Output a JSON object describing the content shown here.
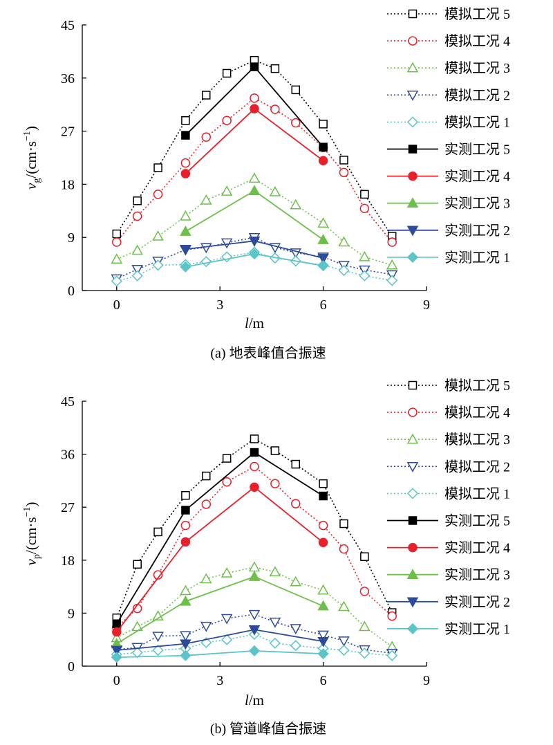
{
  "chart_data": [
    {
      "type": "line",
      "caption": "(a) 地表峰值合振速",
      "xlabel_italic": "l",
      "xlabel_unit": "/m",
      "ylabel_main": "v",
      "ylabel_sub": "g",
      "ylabel_unit": "/(cm·s",
      "ylabel_exp": "−1",
      "ylabel_close": ")",
      "xlim": [
        -1,
        9
      ],
      "ylim": [
        0,
        45
      ],
      "xticks": [
        "0",
        "3",
        "6",
        "9"
      ],
      "yticks": [
        "0",
        "9",
        "18",
        "27",
        "36",
        "45"
      ],
      "legend_position": "right",
      "series": [
        {
          "name": "模拟工况 5",
          "color": "#000000",
          "marker": "square",
          "filled": false,
          "dotted": true,
          "x": [
            0,
            0.6,
            1.2,
            2,
            2.6,
            3.2,
            4,
            4.6,
            5.2,
            6,
            6.6,
            7.2,
            8
          ],
          "y": [
            9.6,
            15.2,
            20.8,
            28.8,
            33.1,
            36.8,
            39.0,
            37.6,
            34.0,
            28.2,
            22.1,
            16.3,
            9.2
          ]
        },
        {
          "name": "模拟工况 4",
          "color": "#e8202a",
          "marker": "circle",
          "filled": false,
          "dotted": true,
          "x": [
            0,
            0.6,
            1.2,
            2,
            2.6,
            3.2,
            4,
            4.6,
            5.2,
            6,
            6.6,
            7.2,
            8
          ],
          "y": [
            8.2,
            12.6,
            16.3,
            21.6,
            26.0,
            28.8,
            32.6,
            30.7,
            28.4,
            24.2,
            20.0,
            13.9,
            8.2
          ]
        },
        {
          "name": "模拟工况 3",
          "color": "#6cc04a",
          "marker": "triangle-up",
          "filled": false,
          "dotted": true,
          "x": [
            0,
            0.6,
            1.2,
            2,
            2.6,
            3.2,
            4,
            4.6,
            5.2,
            6,
            6.6,
            7.2,
            8
          ],
          "y": [
            5.3,
            6.8,
            9.2,
            12.6,
            15.3,
            16.8,
            19.0,
            16.7,
            14.5,
            11.4,
            8.2,
            5.7,
            4.3
          ]
        },
        {
          "name": "模拟工况 2",
          "color": "#2e4b9b",
          "marker": "triangle-down",
          "filled": false,
          "dotted": true,
          "x": [
            0,
            0.6,
            1.2,
            2,
            2.6,
            3.2,
            4,
            4.6,
            5.2,
            6,
            6.6,
            7.2,
            8
          ],
          "y": [
            2.0,
            3.6,
            5.0,
            6.9,
            7.3,
            8.1,
            9.0,
            7.3,
            6.4,
            5.7,
            4.3,
            3.5,
            2.7
          ]
        },
        {
          "name": "模拟工况 1",
          "color": "#5bc4c8",
          "marker": "diamond",
          "filled": false,
          "dotted": true,
          "x": [
            0,
            0.6,
            1.2,
            2,
            2.6,
            3.2,
            4,
            4.6,
            5.2,
            6,
            6.6,
            7.2,
            8
          ],
          "y": [
            1.6,
            2.5,
            4.3,
            4.4,
            4.9,
            5.7,
            6.5,
            5.5,
            5.0,
            4.3,
            3.4,
            2.5,
            1.7
          ]
        },
        {
          "name": "实测工况 5",
          "color": "#000000",
          "marker": "square",
          "filled": true,
          "dotted": false,
          "x": [
            2,
            4,
            6
          ],
          "y": [
            26.3,
            37.9,
            24.3
          ]
        },
        {
          "name": "实测工况 4",
          "color": "#e8202a",
          "marker": "circle",
          "filled": true,
          "dotted": false,
          "x": [
            2,
            4,
            6
          ],
          "y": [
            19.8,
            30.8,
            22.0
          ]
        },
        {
          "name": "实测工况 3",
          "color": "#6cc04a",
          "marker": "triangle-up",
          "filled": true,
          "dotted": false,
          "x": [
            2,
            4,
            6
          ],
          "y": [
            10.0,
            16.9,
            8.6
          ]
        },
        {
          "name": "实测工况 2",
          "color": "#2e4b9b",
          "marker": "triangle-down",
          "filled": true,
          "dotted": false,
          "x": [
            2,
            4,
            6
          ],
          "y": [
            7.0,
            8.4,
            5.5
          ]
        },
        {
          "name": "实测工况 1",
          "color": "#5bc4c8",
          "marker": "diamond",
          "filled": true,
          "dotted": false,
          "x": [
            2,
            4,
            6
          ],
          "y": [
            4.0,
            6.2,
            4.2
          ]
        }
      ]
    },
    {
      "type": "line",
      "caption": "(b) 管道峰值合振速",
      "xlabel_italic": "l",
      "xlabel_unit": "/m",
      "ylabel_main": "v",
      "ylabel_sub": "p",
      "ylabel_unit": "/(cm·s",
      "ylabel_exp": "−1",
      "ylabel_close": ")",
      "xlim": [
        -1,
        9
      ],
      "ylim": [
        0,
        45
      ],
      "xticks": [
        "0",
        "3",
        "6",
        "9"
      ],
      "yticks": [
        "0",
        "9",
        "18",
        "27",
        "36",
        "45"
      ],
      "legend_position": "right",
      "series": [
        {
          "name": "模拟工况 5",
          "color": "#000000",
          "marker": "square",
          "filled": false,
          "dotted": true,
          "x": [
            0,
            0.6,
            1.2,
            2,
            2.6,
            3.2,
            4,
            4.6,
            5.2,
            6,
            6.6,
            7.2,
            8
          ],
          "y": [
            8.2,
            17.3,
            22.8,
            29.0,
            32.3,
            35.3,
            38.6,
            36.6,
            34.3,
            31.0,
            24.2,
            18.6,
            9.1
          ]
        },
        {
          "name": "模拟工况 4",
          "color": "#e8202a",
          "marker": "circle",
          "filled": false,
          "dotted": true,
          "x": [
            0,
            0.6,
            1.2,
            2,
            2.6,
            3.2,
            4,
            4.6,
            5.2,
            6,
            6.6,
            7.2,
            8
          ],
          "y": [
            6.6,
            9.8,
            15.5,
            23.9,
            27.5,
            31.3,
            33.9,
            31.0,
            27.6,
            23.9,
            19.9,
            12.7,
            8.5
          ]
        },
        {
          "name": "模拟工况 3",
          "color": "#6cc04a",
          "marker": "triangle-up",
          "filled": false,
          "dotted": true,
          "x": [
            0,
            0.6,
            1.2,
            2,
            2.6,
            3.2,
            4,
            4.6,
            5.2,
            6,
            6.6,
            7.2,
            8
          ],
          "y": [
            4.8,
            6.7,
            8.5,
            12.8,
            14.8,
            15.8,
            16.8,
            16.0,
            14.3,
            12.9,
            10.1,
            6.7,
            3.3
          ]
        },
        {
          "name": "模拟工况 2",
          "color": "#2e4b9b",
          "marker": "triangle-down",
          "filled": false,
          "dotted": true,
          "x": [
            0,
            0.6,
            1.2,
            2,
            2.6,
            3.2,
            4,
            4.6,
            5.2,
            6,
            6.6,
            7.2,
            8
          ],
          "y": [
            2.8,
            3.2,
            5.1,
            5.2,
            6.8,
            8.1,
            8.8,
            7.5,
            6.4,
            5.3,
            4.3,
            2.8,
            2.2
          ]
        },
        {
          "name": "模拟工况 1",
          "color": "#5bc4c8",
          "marker": "diamond",
          "filled": false,
          "dotted": true,
          "x": [
            0,
            0.6,
            1.2,
            2,
            2.6,
            3.2,
            4,
            4.6,
            5.2,
            6,
            6.6,
            7.2,
            8
          ],
          "y": [
            2.0,
            2.3,
            2.7,
            3.0,
            4.0,
            4.5,
            5.4,
            3.9,
            3.5,
            3.0,
            2.7,
            2.2,
            1.8
          ]
        },
        {
          "name": "实测工况 5",
          "color": "#000000",
          "marker": "square",
          "filled": true,
          "dotted": false,
          "x": [
            0,
            2,
            4,
            6
          ],
          "y": [
            7.2,
            26.5,
            36.3,
            28.9
          ]
        },
        {
          "name": "实测工况 4",
          "color": "#e8202a",
          "marker": "circle",
          "filled": true,
          "dotted": false,
          "x": [
            0,
            2,
            4,
            6
          ],
          "y": [
            5.8,
            21.1,
            30.4,
            21.0
          ]
        },
        {
          "name": "实测工况 3",
          "color": "#6cc04a",
          "marker": "triangle-up",
          "filled": true,
          "dotted": false,
          "x": [
            0,
            2,
            4,
            6
          ],
          "y": [
            3.8,
            11.0,
            15.2,
            10.2
          ]
        },
        {
          "name": "实测工况 2",
          "color": "#2e4b9b",
          "marker": "triangle-down",
          "filled": true,
          "dotted": false,
          "x": [
            0,
            2,
            4,
            6
          ],
          "y": [
            2.7,
            3.8,
            6.2,
            4.2
          ]
        },
        {
          "name": "实测工况 1",
          "color": "#5bc4c8",
          "marker": "diamond",
          "filled": true,
          "dotted": false,
          "x": [
            0,
            2,
            4,
            6
          ],
          "y": [
            1.5,
            1.8,
            2.6,
            2.1
          ]
        }
      ]
    }
  ]
}
